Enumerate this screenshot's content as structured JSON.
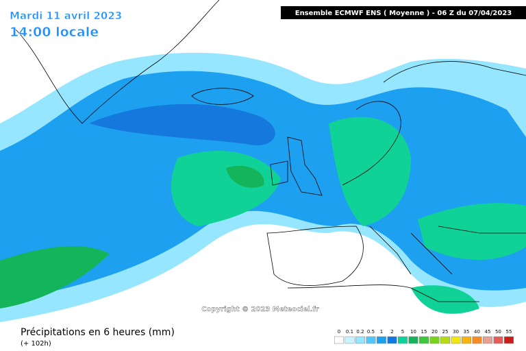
{
  "header": {
    "date": "Mardi 11 avril 2023",
    "time": "14:00 locale",
    "model": "Ensemble ECMWF ENS  ( Moyenne )  -  06 Z du 07/04/2023"
  },
  "copyright": "Copyright © 2023 Meteociel.fr",
  "footer": {
    "title": "Précipitations en 6 heures (mm)",
    "lead": "(+ 102h)"
  },
  "legend": [
    {
      "value": 0,
      "color": "#ffffff"
    },
    {
      "value": 0.1,
      "color": "#c8f4ff"
    },
    {
      "value": 0.2,
      "color": "#96e6ff"
    },
    {
      "value": 0.5,
      "color": "#50c8ff"
    },
    {
      "value": 1,
      "color": "#1ea0f0"
    },
    {
      "value": 2,
      "color": "#1478dc"
    },
    {
      "value": 5,
      "color": "#10d296"
    },
    {
      "value": 10,
      "color": "#14b45a"
    },
    {
      "value": 15,
      "color": "#3cc83c"
    },
    {
      "value": 20,
      "color": "#78d21e"
    },
    {
      "value": 25,
      "color": "#b4dc14"
    },
    {
      "value": 30,
      "color": "#f0e614"
    },
    {
      "value": 35,
      "color": "#f5b40f"
    },
    {
      "value": 40,
      "color": "#f58c28"
    },
    {
      "value": 45,
      "color": "#e6a096"
    },
    {
      "value": 50,
      "color": "#e65a5a"
    },
    {
      "value": 55,
      "color": "#c81e1e"
    }
  ]
}
